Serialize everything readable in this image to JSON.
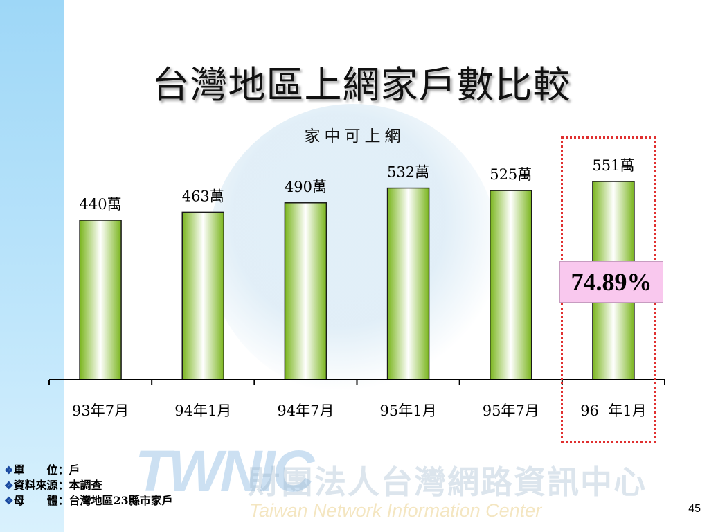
{
  "slide": {
    "title": "台灣地區上網家戶數比較",
    "highlight_label": "74.89%",
    "page_number": "45",
    "notes": [
      {
        "bullet": "❖",
        "text": "單　　位：戶"
      },
      {
        "bullet": "❖",
        "text": "資料來源：本調查"
      },
      {
        "bullet": "❖",
        "text": "母　　體：台灣地區23縣市家戶"
      }
    ],
    "logo_text": "TWNIC",
    "org_name_zh": "財團法人台灣網路資訊中心",
    "org_name_en": "Taiwan Network Information Center"
  },
  "chart_data": {
    "type": "bar",
    "title": "家中可上網",
    "categories": [
      "93年7月",
      "94年1月",
      "94年7月",
      "95年1月",
      "95年7月",
      "96  年1月"
    ],
    "values": [
      440,
      463,
      490,
      532,
      525,
      551
    ],
    "data_labels": [
      "440萬",
      "463萬",
      "490萬",
      "532萬",
      "525萬",
      "551萬"
    ],
    "unit": "萬",
    "highlight_index": 5,
    "colors": {
      "bar_edge": "#7ab51d",
      "bar_center": "#ffffff",
      "bar_stroke": "#1a1a1a",
      "highlight_border": "#e03030",
      "highlight_fill": "#f9c8ee"
    }
  }
}
